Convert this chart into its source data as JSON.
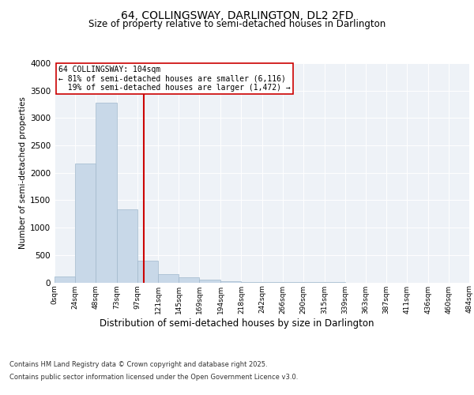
{
  "title1": "64, COLLINGSWAY, DARLINGTON, DL2 2FD",
  "title2": "Size of property relative to semi-detached houses in Darlington",
  "xlabel": "Distribution of semi-detached houses by size in Darlington",
  "ylabel": "Number of semi-detached properties",
  "bin_labels": [
    "0sqm",
    "24sqm",
    "48sqm",
    "73sqm",
    "97sqm",
    "121sqm",
    "145sqm",
    "169sqm",
    "194sqm",
    "218sqm",
    "242sqm",
    "266sqm",
    "290sqm",
    "315sqm",
    "339sqm",
    "363sqm",
    "387sqm",
    "411sqm",
    "436sqm",
    "460sqm",
    "484sqm"
  ],
  "bin_edges": [
    0,
    24,
    48,
    73,
    97,
    121,
    145,
    169,
    194,
    218,
    242,
    266,
    290,
    315,
    339,
    363,
    387,
    411,
    436,
    460,
    484
  ],
  "bar_values": [
    110,
    2170,
    3280,
    1340,
    400,
    150,
    90,
    45,
    25,
    10,
    5,
    3,
    2,
    1,
    0,
    0,
    0,
    0,
    0,
    0
  ],
  "bar_color": "#c8d8e8",
  "bar_edge_color": "#a0b8cc",
  "vline_x": 104,
  "vline_color": "#cc0000",
  "property_label": "64 COLLINGSWAY: 104sqm",
  "pct_smaller": "81% of semi-detached houses are smaller (6,116)",
  "pct_larger": "19% of semi-detached houses are larger (1,472)",
  "arrow_left": "←",
  "arrow_right": "→",
  "ylim": [
    0,
    4000
  ],
  "yticks": [
    0,
    500,
    1000,
    1500,
    2000,
    2500,
    3000,
    3500,
    4000
  ],
  "background_color": "#eef2f7",
  "footer_line1": "Contains HM Land Registry data © Crown copyright and database right 2025.",
  "footer_line2": "Contains public sector information licensed under the Open Government Licence v3.0."
}
